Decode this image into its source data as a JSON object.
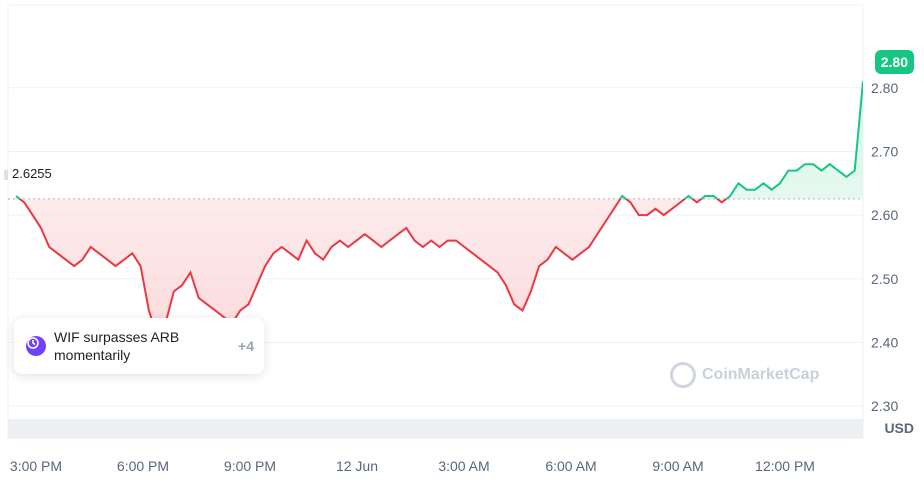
{
  "chart_data": {
    "type": "area",
    "x_labels": [
      "3:00 PM",
      "6:00 PM",
      "9:00 PM",
      "12 Jun",
      "3:00 AM",
      "6:00 AM",
      "9:00 AM",
      "12:00 PM"
    ],
    "y_ticks": [
      "2.80",
      "2.70",
      "2.60",
      "2.50",
      "2.40",
      "2.30"
    ],
    "ylim": [
      2.25,
      2.93
    ],
    "reference_price": 2.6255,
    "reference_label": "2.6255",
    "current_price_label": "2.80",
    "unit_label": "USD",
    "series": [
      {
        "values": [
          2.63,
          2.62,
          2.6,
          2.58,
          2.55,
          2.54,
          2.53,
          2.52,
          2.53,
          2.55,
          2.54,
          2.53,
          2.52,
          2.53,
          2.54,
          2.52,
          2.45,
          2.41,
          2.43,
          2.48,
          2.49,
          2.51,
          2.47,
          2.46,
          2.45,
          2.44,
          2.43,
          2.45,
          2.46,
          2.49,
          2.52,
          2.54,
          2.55,
          2.54,
          2.53,
          2.56,
          2.54,
          2.53,
          2.55,
          2.56,
          2.55,
          2.56,
          2.57,
          2.56,
          2.55,
          2.56,
          2.57,
          2.58,
          2.56,
          2.55,
          2.56,
          2.55,
          2.56,
          2.56,
          2.55,
          2.54,
          2.53,
          2.52,
          2.51,
          2.49,
          2.46,
          2.45,
          2.48,
          2.52,
          2.53,
          2.55,
          2.54,
          2.53,
          2.54,
          2.55,
          2.57,
          2.59,
          2.61,
          2.63,
          2.62,
          2.6,
          2.6,
          2.61,
          2.6,
          2.61,
          2.62,
          2.63,
          2.62,
          2.63,
          2.63,
          2.62,
          2.63,
          2.65,
          2.64,
          2.64,
          2.65,
          2.64,
          2.65,
          2.67,
          2.67,
          2.68,
          2.68,
          2.67,
          2.68,
          2.67,
          2.66,
          2.67,
          2.81
        ]
      }
    ],
    "grid": true
  },
  "news": {
    "text": "WIF surpasses ARB momentarily",
    "count": "+4"
  },
  "watermark": "CoinMarketCap",
  "colors": {
    "up": "#16c784",
    "down": "#ea3943",
    "up_fill": "#d6f5e8",
    "down_fill": "#fbdcdd",
    "grid": "#eff2f5",
    "volume": "#e6e9ee"
  }
}
